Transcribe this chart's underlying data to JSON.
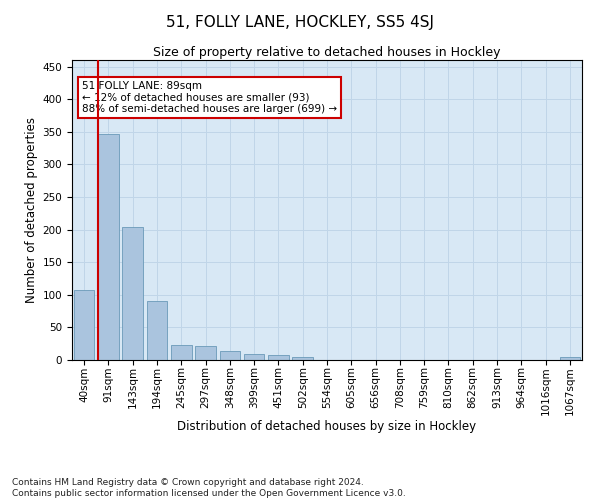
{
  "title": "51, FOLLY LANE, HOCKLEY, SS5 4SJ",
  "subtitle": "Size of property relative to detached houses in Hockley",
  "xlabel": "Distribution of detached houses by size in Hockley",
  "ylabel": "Number of detached properties",
  "footnote1": "Contains HM Land Registry data © Crown copyright and database right 2024.",
  "footnote2": "Contains public sector information licensed under the Open Government Licence v3.0.",
  "categories": [
    "40sqm",
    "91sqm",
    "143sqm",
    "194sqm",
    "245sqm",
    "297sqm",
    "348sqm",
    "399sqm",
    "451sqm",
    "502sqm",
    "554sqm",
    "605sqm",
    "656sqm",
    "708sqm",
    "759sqm",
    "810sqm",
    "862sqm",
    "913sqm",
    "964sqm",
    "1016sqm",
    "1067sqm"
  ],
  "values": [
    107,
    347,
    204,
    90,
    23,
    22,
    14,
    9,
    8,
    5,
    0,
    0,
    0,
    0,
    0,
    0,
    0,
    0,
    0,
    0,
    4
  ],
  "bar_color": "#aac4de",
  "bar_edge_color": "#6a9ab8",
  "grid_color": "#c0d5e8",
  "background_color": "#d8e8f5",
  "annotation_text": "51 FOLLY LANE: 89sqm\n← 12% of detached houses are smaller (93)\n88% of semi-detached houses are larger (699) →",
  "annotation_box_color": "#ffffff",
  "annotation_box_edge": "#cc0000",
  "vline_color": "#cc0000",
  "ylim": [
    0,
    460
  ],
  "yticks": [
    0,
    50,
    100,
    150,
    200,
    250,
    300,
    350,
    400,
    450
  ],
  "title_fontsize": 11,
  "subtitle_fontsize": 9,
  "xlabel_fontsize": 8.5,
  "ylabel_fontsize": 8.5,
  "tick_fontsize": 7.5,
  "annot_fontsize": 7.5,
  "footnote_fontsize": 6.5
}
